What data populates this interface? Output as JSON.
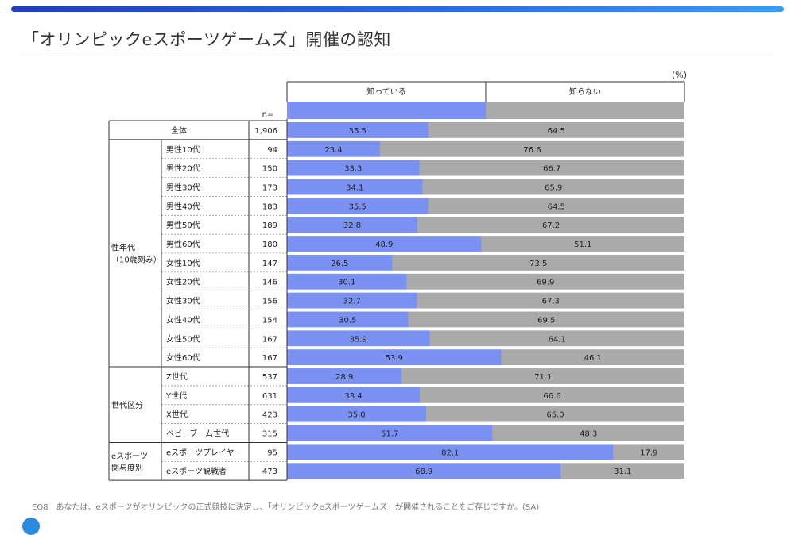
{
  "title": "「オリンピックeスポーツゲームズ」開催の認知",
  "unit": "(%)",
  "footnote": "EQ8　あなたは、eスポーツがオリンピックの正式競技に決定し、「オリンピックeスポーツゲームズ」が開催されることをご存じですか。(SA)",
  "colors": {
    "known": "#7b91f2",
    "unknown": "#aaaaaa",
    "accent": "#2a6fe0"
  },
  "chart_data": {
    "type": "bar",
    "stacked": true,
    "orientation": "horizontal",
    "n_label": "n=",
    "series": [
      {
        "name": "知っている"
      },
      {
        "name": "知らない"
      }
    ],
    "groups": [
      {
        "label": "",
        "rows": [
          {
            "label": "全体",
            "n": "1,906",
            "known": 35.5,
            "unknown": 64.5
          }
        ]
      },
      {
        "label": "性年代\n（10歳刻み）",
        "rows": [
          {
            "label": "男性10代",
            "n": "94",
            "known": 23.4,
            "unknown": 76.6
          },
          {
            "label": "男性20代",
            "n": "150",
            "known": 33.3,
            "unknown": 66.7
          },
          {
            "label": "男性30代",
            "n": "173",
            "known": 34.1,
            "unknown": 65.9
          },
          {
            "label": "男性40代",
            "n": "183",
            "known": 35.5,
            "unknown": 64.5
          },
          {
            "label": "男性50代",
            "n": "189",
            "known": 32.8,
            "unknown": 67.2
          },
          {
            "label": "男性60代",
            "n": "180",
            "known": 48.9,
            "unknown": 51.1
          },
          {
            "label": "女性10代",
            "n": "147",
            "known": 26.5,
            "unknown": 73.5
          },
          {
            "label": "女性20代",
            "n": "146",
            "known": 30.1,
            "unknown": 69.9
          },
          {
            "label": "女性30代",
            "n": "156",
            "known": 32.7,
            "unknown": 67.3
          },
          {
            "label": "女性40代",
            "n": "154",
            "known": 30.5,
            "unknown": 69.5
          },
          {
            "label": "女性50代",
            "n": "167",
            "known": 35.9,
            "unknown": 64.1
          },
          {
            "label": "女性60代",
            "n": "167",
            "known": 53.9,
            "unknown": 46.1
          }
        ]
      },
      {
        "label": "世代区分",
        "rows": [
          {
            "label": "Z世代",
            "n": "537",
            "known": 28.9,
            "unknown": 71.1
          },
          {
            "label": "Y世代",
            "n": "631",
            "known": 33.4,
            "unknown": 66.6
          },
          {
            "label": "X世代",
            "n": "423",
            "known": 35.0,
            "unknown": 65.0
          },
          {
            "label": "ベビーブーム世代",
            "n": "315",
            "known": 51.7,
            "unknown": 48.3
          }
        ]
      },
      {
        "label": "eスポーツ\n関与度別",
        "rows": [
          {
            "label": "eスポーツプレイヤー",
            "n": "95",
            "known": 82.1,
            "unknown": 17.9
          },
          {
            "label": "eスポーツ観戦者",
            "n": "473",
            "known": 68.9,
            "unknown": 31.1
          }
        ]
      }
    ],
    "xlim": [
      0,
      100
    ]
  }
}
